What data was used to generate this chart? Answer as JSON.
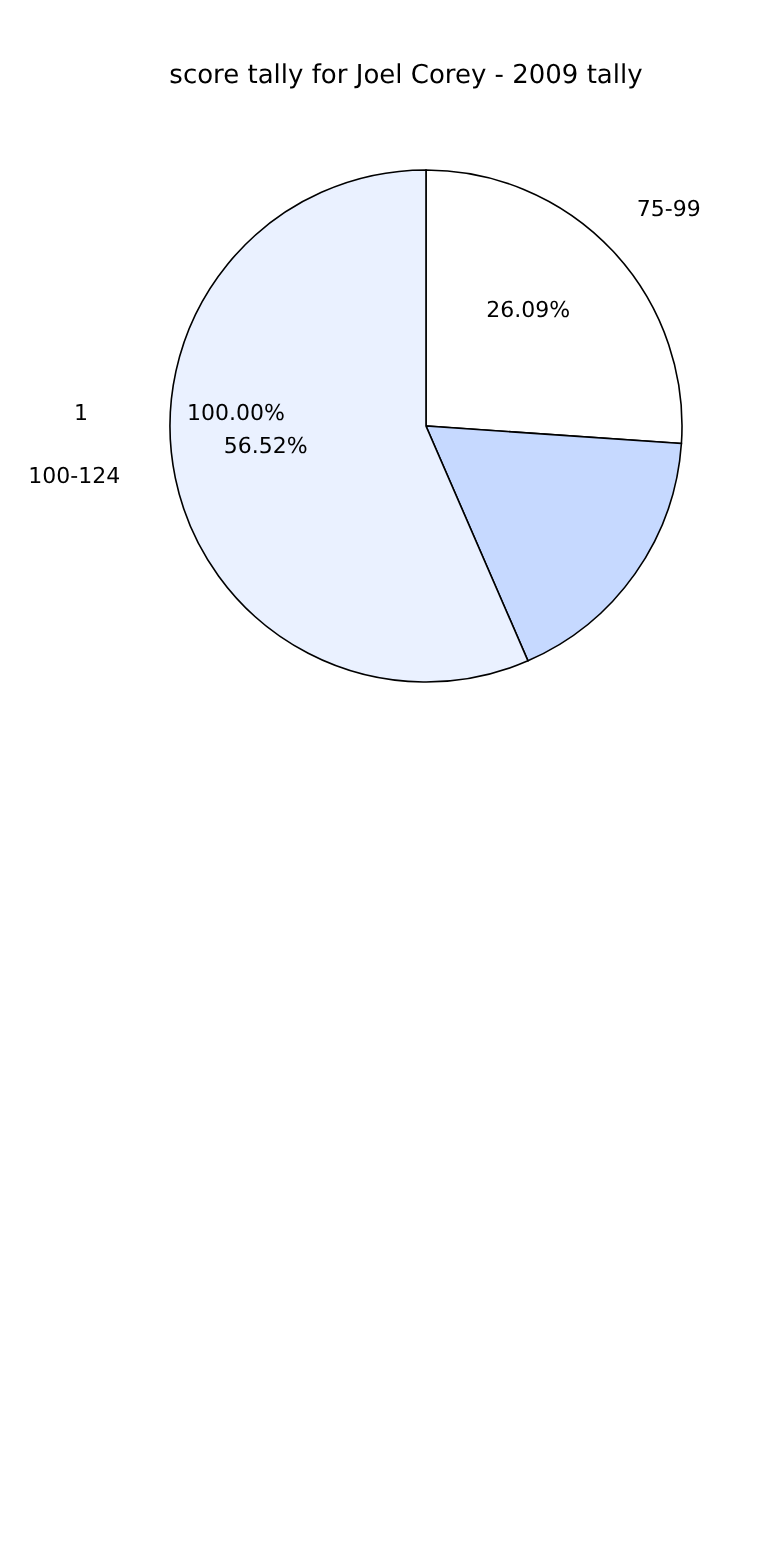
{
  "chart_data": {
    "type": "pie",
    "title": "score tally for Joel Corey - 2009 tally",
    "categories": [
      "75-99",
      null,
      "100-124"
    ],
    "values": [
      26.09,
      17.39,
      56.52
    ],
    "colors": [
      "#ffffff",
      "#c6d9ff",
      "#eaf1ff"
    ],
    "value_labels": [
      "26.09%",
      null,
      "56.52%"
    ],
    "annotations": [
      "1",
      "100.00%"
    ]
  }
}
